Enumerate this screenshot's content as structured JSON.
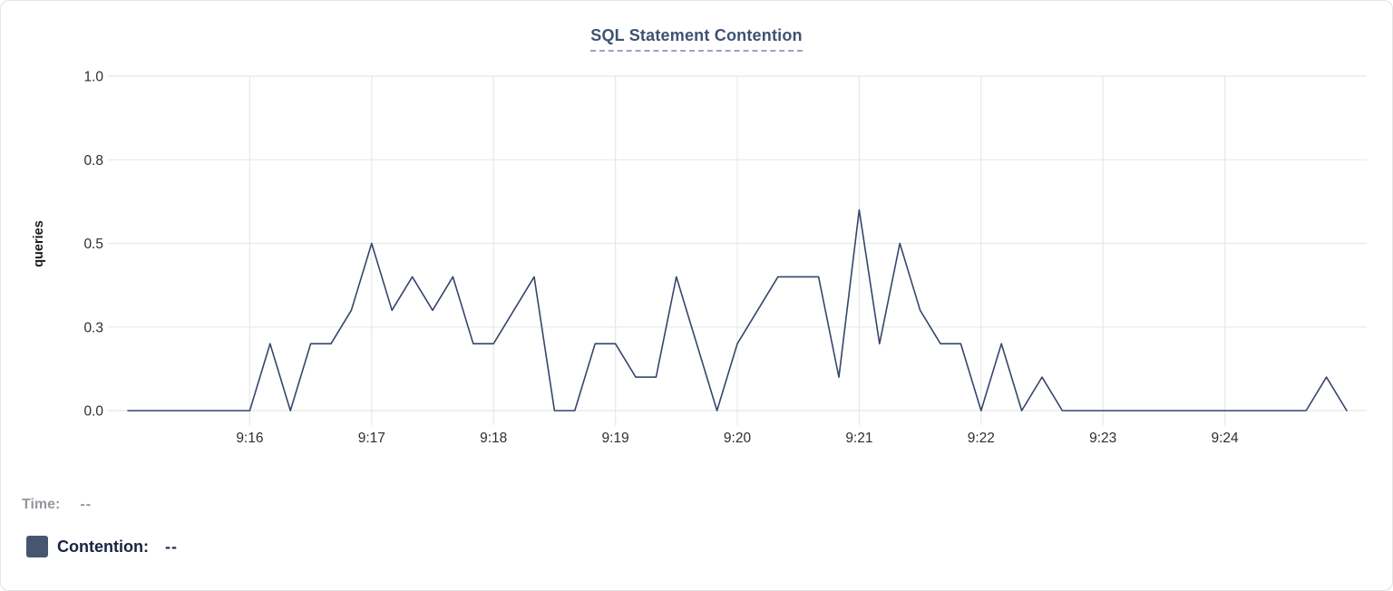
{
  "header": {
    "title": "SQL Statement Contention"
  },
  "legend": {
    "time_label": "Time:",
    "time_value": "--",
    "contention_label": "Contention:",
    "contention_value": "--"
  },
  "colors": {
    "line": "#36466a",
    "swatch": "#475670",
    "title": "#3e5272",
    "title_underline": "#9aa2c6",
    "grid": "#e8e8e8",
    "tick_text": "#2e2e2e",
    "time_label_text": "#96989e",
    "contention_text": "#16243f"
  },
  "chart_data": {
    "type": "line",
    "title": "SQL Statement Contention",
    "xlabel": "",
    "ylabel": "queries",
    "ylim": [
      0,
      1.0
    ],
    "grid": true,
    "legend_position": "bottom-left",
    "y_ticks": {
      "values": [
        0,
        0.25,
        0.5,
        0.75,
        1.0
      ],
      "labels": [
        "0.0",
        "0.3",
        "0.5",
        "0.8",
        "1.0"
      ]
    },
    "x_ticks": [
      "9:16",
      "9:17",
      "9:18",
      "9:19",
      "9:20",
      "9:21",
      "9:22",
      "9:23",
      "9:24"
    ],
    "x": [
      "9:15:00",
      "9:15:10",
      "9:15:20",
      "9:15:30",
      "9:15:40",
      "9:15:50",
      "9:16:00",
      "9:16:10",
      "9:16:20",
      "9:16:30",
      "9:16:40",
      "9:16:50",
      "9:17:00",
      "9:17:10",
      "9:17:20",
      "9:17:30",
      "9:17:40",
      "9:17:50",
      "9:18:00",
      "9:18:10",
      "9:18:20",
      "9:18:30",
      "9:18:40",
      "9:18:50",
      "9:19:00",
      "9:19:10",
      "9:19:20",
      "9:19:30",
      "9:19:40",
      "9:19:50",
      "9:20:00",
      "9:20:10",
      "9:20:20",
      "9:20:30",
      "9:20:40",
      "9:20:50",
      "9:21:00",
      "9:21:10",
      "9:21:20",
      "9:21:30",
      "9:21:40",
      "9:21:50",
      "9:22:00",
      "9:22:10",
      "9:22:20",
      "9:22:30",
      "9:22:40",
      "9:22:50",
      "9:23:00",
      "9:23:10",
      "9:23:20",
      "9:23:30",
      "9:23:40",
      "9:23:50",
      "9:24:00",
      "9:24:10",
      "9:24:20",
      "9:24:30",
      "9:24:40",
      "9:24:50",
      "9:25:00"
    ],
    "series": [
      {
        "name": "Contention",
        "values": [
          0,
          0,
          0,
          0,
          0,
          0,
          0,
          0.2,
          0,
          0.2,
          0.2,
          0.3,
          0.5,
          0.3,
          0.4,
          0.3,
          0.4,
          0.2,
          0.2,
          0.3,
          0.4,
          0,
          0,
          0.2,
          0.2,
          0.1,
          0.1,
          0.4,
          0.2,
          0,
          0.2,
          0.3,
          0.4,
          0.4,
          0.4,
          0.1,
          0.6,
          0.2,
          0.5,
          0.3,
          0.2,
          0.2,
          0,
          0.2,
          0,
          0.1,
          0,
          0,
          0,
          0,
          0,
          0,
          0,
          0,
          0,
          0,
          0,
          0,
          0,
          0.1,
          0
        ]
      }
    ]
  }
}
